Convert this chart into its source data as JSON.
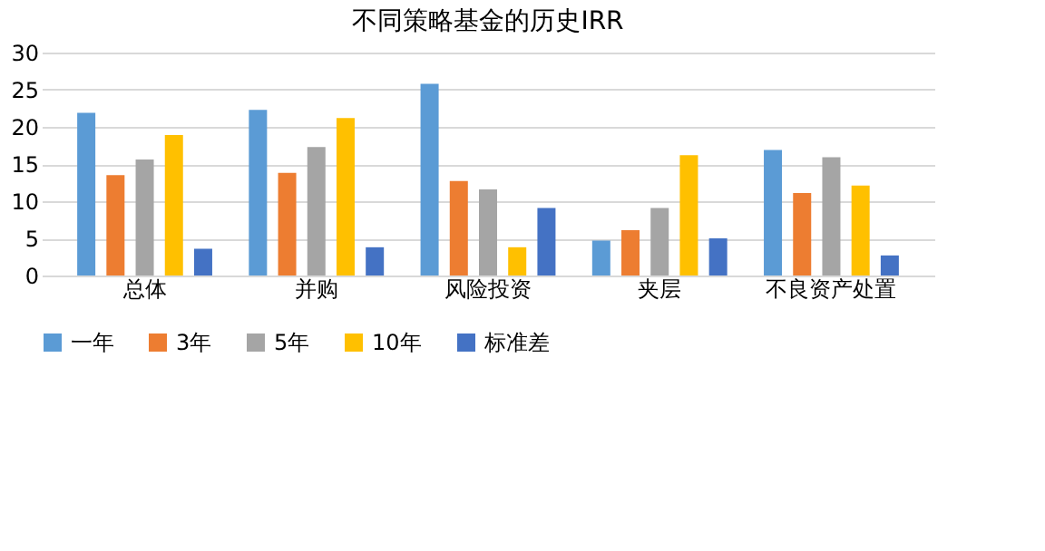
{
  "chart_data": {
    "type": "bar",
    "title": "不同策略基金的历史IRR",
    "categories": [
      "总体",
      "并购",
      "风险投资",
      "夹层",
      "不良资产处置"
    ],
    "series": [
      {
        "name": "一年",
        "color": "#5b9bd5",
        "values": [
          21.9,
          22.3,
          25.8,
          4.7,
          16.9
        ]
      },
      {
        "name": "3年",
        "color": "#ed7d31",
        "values": [
          13.5,
          13.8,
          12.7,
          6.1,
          11.1
        ]
      },
      {
        "name": "5年",
        "color": "#a5a5a5",
        "values": [
          15.6,
          17.3,
          11.6,
          9.1,
          15.9
        ]
      },
      {
        "name": "10年",
        "color": "#ffc000",
        "values": [
          18.9,
          21.2,
          3.8,
          16.2,
          12.1
        ]
      },
      {
        "name": "标准差",
        "color": "#4472c4",
        "values": [
          3.6,
          3.8,
          9.1,
          5.0,
          2.7
        ]
      }
    ],
    "ylim": [
      0,
      30
    ],
    "yticks": [
      0,
      5,
      10,
      15,
      20,
      25,
      30
    ],
    "grid": "y",
    "legend": "bottom"
  }
}
